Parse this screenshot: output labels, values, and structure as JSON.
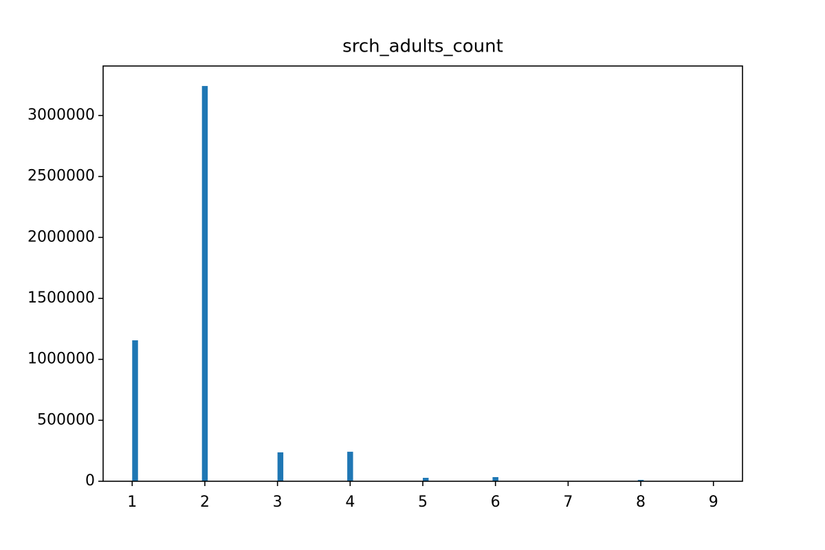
{
  "chart_data": {
    "type": "histogram",
    "title": "srch_adults_count",
    "bins": [
      1,
      1.08,
      1.16,
      1.24,
      1.32,
      1.4,
      1.48,
      1.56,
      1.64,
      1.72,
      1.8,
      1.88,
      1.96,
      2.04,
      2.12,
      2.2,
      2.28,
      2.36,
      2.44,
      2.52,
      2.6,
      2.68,
      2.76,
      2.84,
      2.92,
      3,
      3.08,
      3.16,
      3.24,
      3.32,
      3.4,
      3.48,
      3.56,
      3.64,
      3.72,
      3.8,
      3.88,
      3.96,
      4.04,
      4.12,
      4.2,
      4.28,
      4.36,
      4.44,
      4.52,
      4.6,
      4.68,
      4.76,
      4.84,
      4.92,
      5,
      5.08,
      5.16,
      5.24,
      5.32,
      5.4,
      5.48,
      5.56,
      5.64,
      5.72,
      5.8,
      5.88,
      5.96,
      6.04,
      6.12,
      6.2,
      6.28,
      6.36,
      6.44,
      6.52,
      6.6,
      6.68,
      6.76,
      6.84,
      6.92,
      7,
      7.08,
      7.16,
      7.24,
      7.32,
      7.4,
      7.48,
      7.56,
      7.64,
      7.72,
      7.8,
      7.88,
      7.96,
      8.04,
      8.12,
      8.2,
      8.28,
      8.36,
      8.44,
      8.52,
      8.6,
      8.68,
      8.76,
      8.84,
      8.92,
      9
    ],
    "values": [
      1156000,
      0,
      0,
      0,
      0,
      0,
      0,
      0,
      0,
      0,
      0,
      0,
      3242000,
      0,
      0,
      0,
      0,
      0,
      0,
      0,
      0,
      0,
      0,
      0,
      0,
      237000,
      0,
      0,
      0,
      0,
      0,
      0,
      0,
      0,
      0,
      0,
      0,
      242000,
      0,
      0,
      0,
      0,
      0,
      0,
      0,
      0,
      0,
      0,
      0,
      0,
      28000,
      0,
      0,
      0,
      0,
      0,
      0,
      0,
      0,
      0,
      0,
      0,
      34000,
      0,
      0,
      0,
      0,
      0,
      0,
      0,
      0,
      0,
      0,
      0,
      0,
      3000,
      0,
      0,
      0,
      0,
      0,
      0,
      0,
      0,
      0,
      0,
      0,
      11000,
      0,
      0,
      0,
      0,
      0,
      0,
      0,
      0,
      0,
      0,
      0,
      2000
    ],
    "color": "#1f77b4",
    "xlim": [
      0.6,
      9.4
    ],
    "xticks": [
      1,
      2,
      3,
      4,
      5,
      6,
      7,
      8,
      9
    ],
    "ylim": [
      0,
      3406000
    ],
    "yticks": [
      0,
      500000,
      1000000,
      1500000,
      2000000,
      2500000,
      3000000
    ]
  }
}
